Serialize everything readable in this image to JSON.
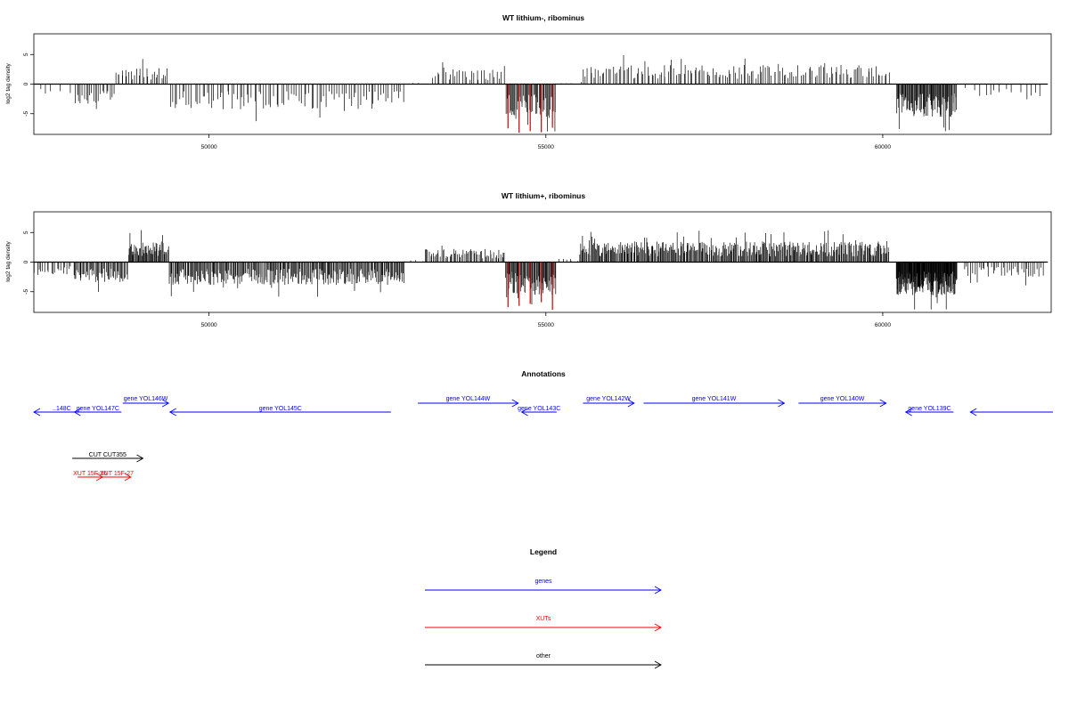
{
  "chart_data": [
    {
      "type": "bar",
      "title": "WT lithium-, ribominus",
      "ylabel": "log2 tag density",
      "xlim": [
        47400,
        62500
      ],
      "ylim": [
        -8.5,
        8.5
      ],
      "x_ticks": [
        50000,
        55000,
        60000
      ],
      "y_ticks": [
        -5,
        0,
        5
      ],
      "grid": false,
      "segments": [
        {
          "start": 47400,
          "end": 48000,
          "level": -1.5,
          "density": 5
        },
        {
          "start": 48000,
          "end": 48600,
          "level": -2.8,
          "density": 22
        },
        {
          "start": 48600,
          "end": 49400,
          "level": 2.2,
          "density": 28
        },
        {
          "start": 49400,
          "end": 52900,
          "level": -3.4,
          "density": 95
        },
        {
          "start": 52900,
          "end": 53300,
          "level": 0.2,
          "density": 3
        },
        {
          "start": 53300,
          "end": 54400,
          "level": 2.0,
          "density": 32
        },
        {
          "start": 54400,
          "end": 55150,
          "level": -4.8,
          "density": 55,
          "red": true
        },
        {
          "start": 55150,
          "end": 55550,
          "level": 0.3,
          "density": 4
        },
        {
          "start": 55550,
          "end": 60100,
          "level": 2.6,
          "density": 150
        },
        {
          "start": 60200,
          "end": 61100,
          "level": -4.5,
          "density": 85
        },
        {
          "start": 61200,
          "end": 62400,
          "level": -1.6,
          "density": 14
        }
      ]
    },
    {
      "type": "bar",
      "title": "WT lithium+, ribominus",
      "ylabel": "log2 tag density",
      "xlim": [
        47400,
        62500
      ],
      "ylim": [
        -8.5,
        8.5
      ],
      "x_ticks": [
        50000,
        55000,
        60000
      ],
      "y_ticks": [
        -5,
        0,
        5
      ],
      "grid": false,
      "segments": [
        {
          "start": 47400,
          "end": 48000,
          "level": -1.8,
          "density": 20
        },
        {
          "start": 48000,
          "end": 48800,
          "level": -2.8,
          "density": 50
        },
        {
          "start": 48800,
          "end": 49400,
          "level": 2.8,
          "density": 55
        },
        {
          "start": 49400,
          "end": 52900,
          "level": -3.1,
          "density": 260
        },
        {
          "start": 52900,
          "end": 53200,
          "level": 0.3,
          "density": 4
        },
        {
          "start": 53200,
          "end": 54400,
          "level": 1.8,
          "density": 60
        },
        {
          "start": 54400,
          "end": 55150,
          "level": -4.5,
          "density": 70,
          "red": true
        },
        {
          "start": 55150,
          "end": 55500,
          "level": 0.5,
          "density": 6
        },
        {
          "start": 55500,
          "end": 60100,
          "level": 2.8,
          "density": 360
        },
        {
          "start": 60200,
          "end": 61100,
          "level": -4.5,
          "density": 150
        },
        {
          "start": 61200,
          "end": 62400,
          "level": -2.0,
          "density": 40
        }
      ]
    }
  ],
  "annotations": {
    "title": "Annotations",
    "genes": [
      {
        "label": "..148C",
        "row": 0,
        "start": 47400,
        "end": 48230,
        "dir": "rev"
      },
      {
        "label": "gene YOL147C",
        "row": 0,
        "start": 48000,
        "end": 48700,
        "dir": "rev"
      },
      {
        "label": "gene YOL146W",
        "row": 1,
        "start": 48720,
        "end": 49400,
        "dir": "fwd"
      },
      {
        "label": "gene YOL145C",
        "row": 0,
        "start": 49420,
        "end": 52700,
        "dir": "rev"
      },
      {
        "label": "gene YOL144W",
        "row": 1,
        "start": 53100,
        "end": 54590,
        "dir": "fwd"
      },
      {
        "label": "gene YOL143C",
        "row": 0,
        "start": 54640,
        "end": 55160,
        "dir": "rev"
      },
      {
        "label": "gene YOL142W",
        "row": 1,
        "start": 55550,
        "end": 56310,
        "dir": "fwd"
      },
      {
        "label": "gene YOL141W",
        "row": 1,
        "start": 56450,
        "end": 58540,
        "dir": "fwd"
      },
      {
        "label": "gene YOL140W",
        "row": 1,
        "start": 58750,
        "end": 60050,
        "dir": "fwd"
      },
      {
        "label": "gene YOL139C",
        "row": 0,
        "start": 60340,
        "end": 61050,
        "dir": "rev"
      },
      {
        "label": "",
        "row": 0,
        "start": 61300,
        "end": 63000,
        "dir": "rev"
      }
    ],
    "other": [
      {
        "label": "CUT CUT355",
        "start": 47970,
        "end": 49020,
        "dir": "fwd"
      }
    ],
    "xuts": [
      {
        "label": "XUT 15F-26",
        "start": 48050,
        "end": 48420,
        "dir": "fwd"
      },
      {
        "label": "XUT 15F-27",
        "start": 48420,
        "end": 48840,
        "dir": "fwd"
      }
    ]
  },
  "legend": {
    "title": "Legend",
    "items": [
      {
        "label": "genes",
        "color": "#0000ff"
      },
      {
        "label": "XUTs",
        "color": "#ff0000"
      },
      {
        "label": "other",
        "color": "#000000"
      }
    ]
  },
  "colors": {
    "genes": "#0000ff",
    "xuts": "#ff0000",
    "other": "#000000",
    "highlight": "#cc0000"
  }
}
